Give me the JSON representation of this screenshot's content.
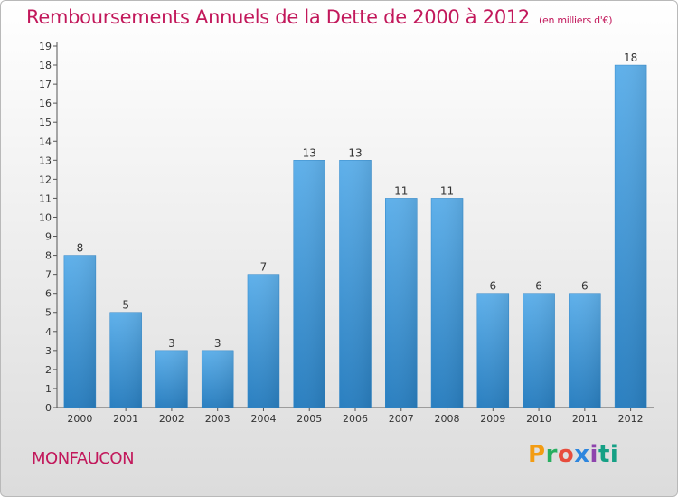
{
  "chart_data": {
    "type": "bar",
    "title": "Remboursements Annuels de la Dette de 2000 à 2012",
    "subtitle": "(en milliers d'€)",
    "categories": [
      "2000",
      "2001",
      "2002",
      "2003",
      "2004",
      "2005",
      "2006",
      "2007",
      "2008",
      "2009",
      "2010",
      "2011",
      "2012"
    ],
    "values": [
      8,
      5,
      3,
      3,
      7,
      13,
      13,
      11,
      11,
      6,
      6,
      6,
      18
    ],
    "ylim": [
      0,
      19
    ],
    "yticks": [
      0,
      1,
      2,
      3,
      4,
      5,
      6,
      7,
      8,
      9,
      10,
      11,
      12,
      13,
      14,
      15,
      16,
      17,
      18,
      19
    ],
    "grid": false,
    "bar_color": "#4a9fe0",
    "xlabel": "",
    "ylabel": ""
  },
  "location": "MONFAUCON",
  "brand": "Proxiti",
  "colors": {
    "title": "#c2185b",
    "bar_light": "#5fb0ea",
    "bar_dark": "#1f74b5"
  }
}
